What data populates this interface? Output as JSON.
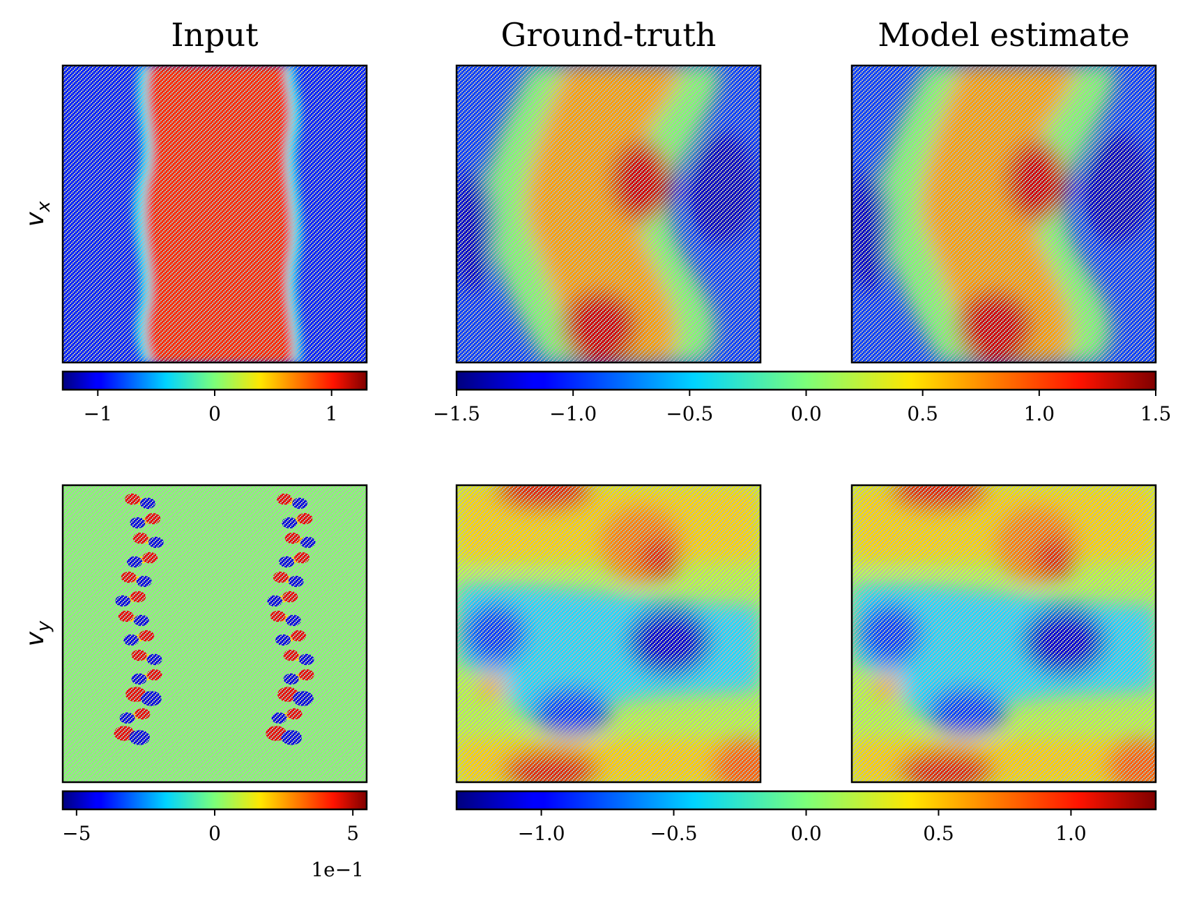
{
  "figure": {
    "column_titles": [
      "Input",
      "Ground-truth",
      "Model estimate"
    ],
    "row_labels": [
      {
        "base": "v",
        "sub": "x"
      },
      {
        "base": "v",
        "sub": "y"
      }
    ],
    "colormap": "jet",
    "masked_color": "#b4b4b4"
  },
  "chart_data": [
    {
      "type": "heatmap",
      "row": "v_x",
      "column": "Input",
      "description": "vertical red band (~1) between blue regions (~-1), wavy edges",
      "colorbar": {
        "vmin": -1.3,
        "vmax": 1.3,
        "ticks": [
          -1,
          0,
          1
        ],
        "tick_labels": [
          "−1",
          "0",
          "1"
        ]
      }
    },
    {
      "type": "heatmap",
      "row": "v_x",
      "column": "Ground-truth",
      "shares_colorbar_with": "Model estimate",
      "colorbar": {
        "vmin": -1.5,
        "vmax": 1.5,
        "ticks": [
          -1.5,
          -1.0,
          -0.5,
          0.0,
          0.5,
          1.0,
          1.5
        ],
        "tick_labels": [
          "−1.5",
          "−1.0",
          "−0.5",
          "0.0",
          "0.5",
          "1.0",
          "1.5"
        ]
      }
    },
    {
      "type": "heatmap",
      "row": "v_x",
      "column": "Model estimate"
    },
    {
      "type": "heatmap",
      "row": "v_y",
      "column": "Input",
      "description": "near-zero field with two columns of small vortex dipoles",
      "colorbar": {
        "vmin": -5.5,
        "vmax": 5.5,
        "ticks": [
          -5,
          0,
          5
        ],
        "tick_labels": [
          "−5",
          "0",
          "5"
        ],
        "offset_text": "1e−1"
      }
    },
    {
      "type": "heatmap",
      "row": "v_y",
      "column": "Ground-truth",
      "shares_colorbar_with": "Model estimate",
      "colorbar": {
        "vmin": -1.32,
        "vmax": 1.32,
        "ticks": [
          -1.0,
          -0.5,
          0.0,
          0.5,
          1.0
        ],
        "tick_labels": [
          "−1.0",
          "−0.5",
          "0.0",
          "0.5",
          "1.0"
        ]
      }
    },
    {
      "type": "heatmap",
      "row": "v_y",
      "column": "Model estimate"
    }
  ]
}
